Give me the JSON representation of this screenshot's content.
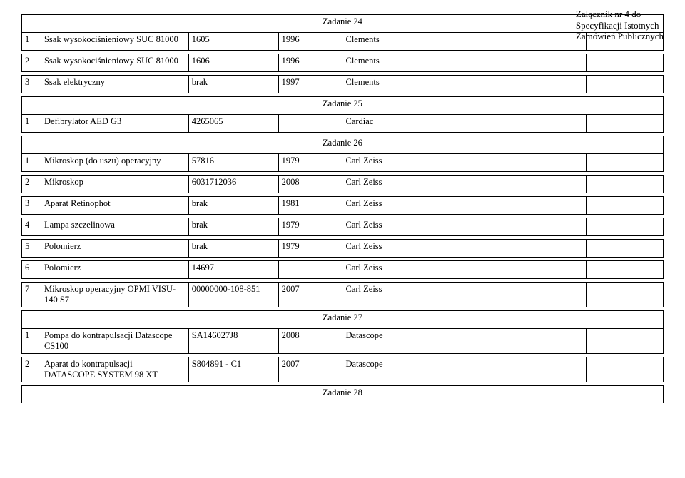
{
  "corner": {
    "l1": "Załącznik nr 4 do",
    "l2": "Specyfikacji Istotnych",
    "l3": "Zamówień Publicznych"
  },
  "sections": {
    "s24": {
      "title": "Zadanie 24",
      "rows": [
        {
          "n": "1",
          "name": "Ssak wysokociśnieniowy SUC 81000",
          "sn": "1605",
          "yr": "1996",
          "m": "Clements"
        },
        {
          "n": "2",
          "name": "Ssak wysokociśnieniowy SUC 81000",
          "sn": "1606",
          "yr": "1996",
          "m": "Clements"
        },
        {
          "n": "3",
          "name": "Ssak elektryczny",
          "sn": "brak",
          "yr": "1997",
          "m": "Clements"
        }
      ]
    },
    "s25": {
      "title": "Zadanie 25",
      "rows": [
        {
          "n": "1",
          "name": "Defibrylator AED G3",
          "sn": "4265065",
          "yr": "",
          "m": "Cardiac"
        }
      ]
    },
    "s26": {
      "title": "Zadanie 26",
      "rows": [
        {
          "n": "1",
          "name": "Mikroskop (do uszu) operacyjny",
          "sn": "57816",
          "yr": "1979",
          "m": "Carl Zeiss"
        },
        {
          "n": "2",
          "name": "Mikroskop",
          "sn": "6031712036",
          "yr": "2008",
          "m": "Carl Zeiss"
        },
        {
          "n": "3",
          "name": "Aparat Retinophot",
          "sn": "brak",
          "yr": "1981",
          "m": "Carl Zeiss"
        },
        {
          "n": "4",
          "name": "Lampa szczelinowa",
          "sn": "brak",
          "yr": "1979",
          "m": "Carl Zeiss"
        },
        {
          "n": "5",
          "name": "Polomierz",
          "sn": "brak",
          "yr": "1979",
          "m": "Carl Zeiss"
        },
        {
          "n": "6",
          "name": "Polomierz",
          "sn": "14697",
          "yr": "",
          "m": "Carl Zeiss"
        },
        {
          "n": "7",
          "name": "Mikroskop operacyjny OPMI VISU-140 S7",
          "sn": "00000000-108-851",
          "yr": "2007",
          "m": "Carl Zeiss"
        }
      ]
    },
    "s27": {
      "title": "Zadanie 27",
      "rows": [
        {
          "n": "1",
          "name": "Pompa do kontrapulsacji Datascope CS100",
          "sn": "SA146027J8",
          "yr": "2008",
          "m": "Datascope"
        },
        {
          "n": "2",
          "name": "Aparat do kontrapulsacji DATASCOPE SYSTEM 98 XT",
          "sn": "S804891 - C1",
          "yr": "2007",
          "m": "Datascope"
        }
      ]
    },
    "s28": {
      "title": "Zadanie 28"
    }
  }
}
